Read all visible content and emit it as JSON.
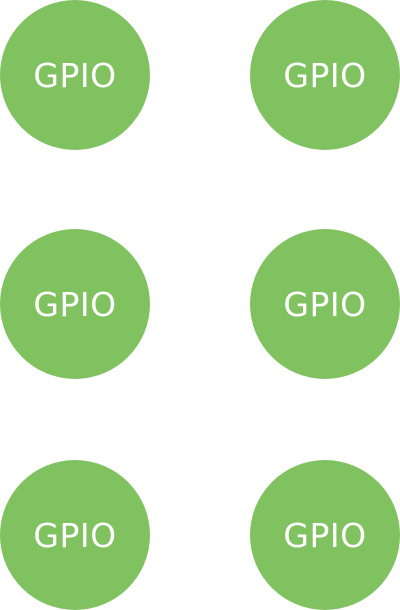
{
  "theme": {
    "button_color": "#80c160",
    "label_color": "#ffffff",
    "background": "#ffffff"
  },
  "buttons": [
    {
      "label": "GPIO"
    },
    {
      "label": "GPIO"
    },
    {
      "label": "GPIO"
    },
    {
      "label": "GPIO"
    },
    {
      "label": "GPIO"
    },
    {
      "label": "GPIO"
    }
  ]
}
